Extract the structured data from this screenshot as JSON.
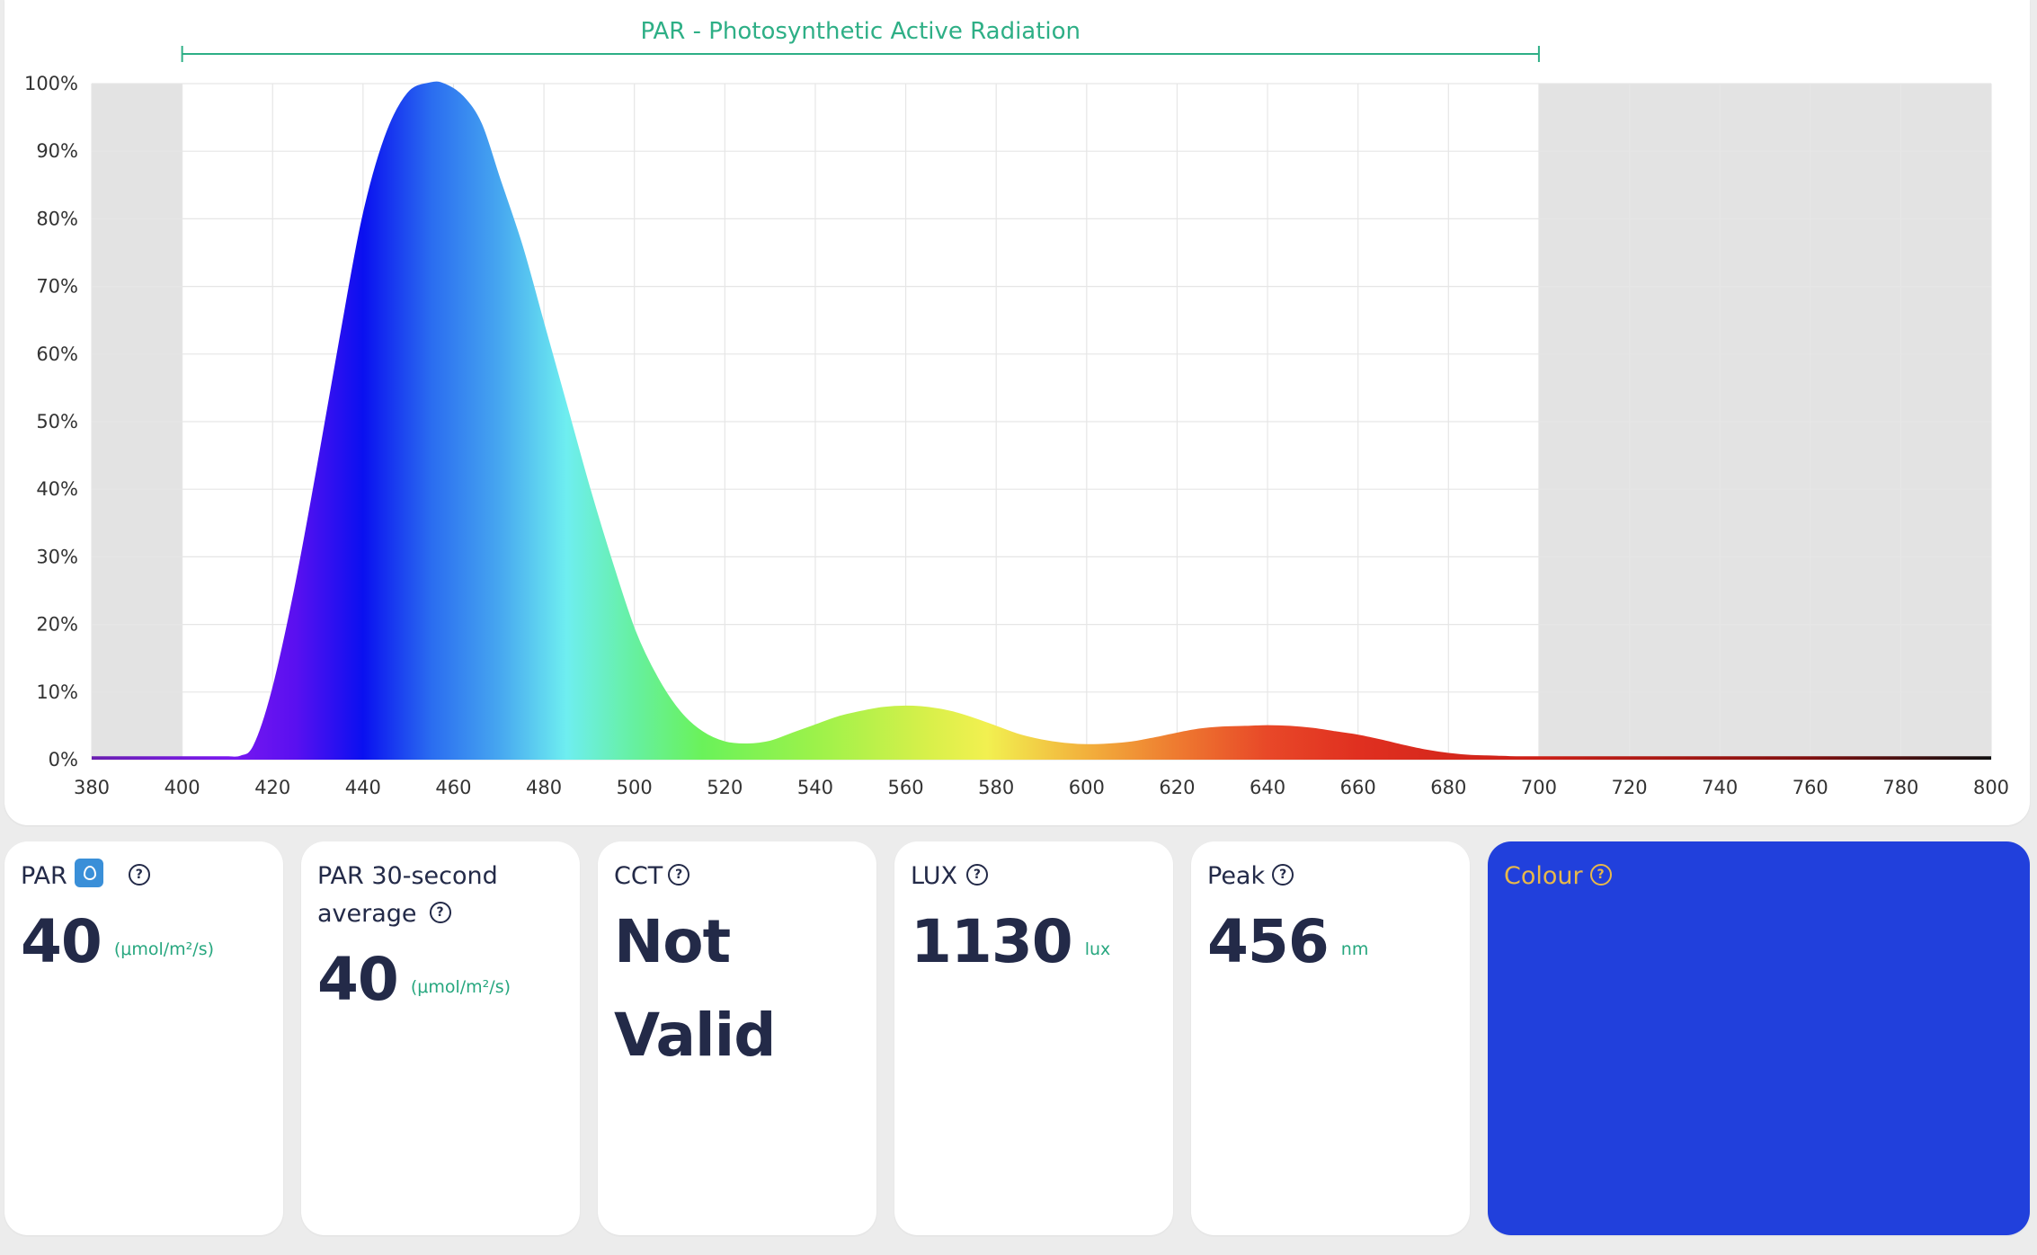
{
  "chart_data": {
    "type": "area",
    "title": "PAR - Photosynthetic Active Radiation",
    "xlabel": "",
    "ylabel": "",
    "xlim": [
      380,
      800
    ],
    "ylim": [
      0,
      100
    ],
    "x_ticks": [
      380,
      400,
      420,
      440,
      460,
      480,
      500,
      520,
      540,
      560,
      580,
      600,
      620,
      640,
      660,
      680,
      700,
      720,
      740,
      760,
      780,
      800
    ],
    "y_ticks": [
      0,
      10,
      20,
      30,
      40,
      50,
      60,
      70,
      80,
      90,
      100
    ],
    "y_tick_suffix": "%",
    "par_range": [
      400,
      700
    ],
    "grid": true,
    "x": [
      380,
      390,
      400,
      405,
      410,
      413,
      416,
      420,
      425,
      430,
      435,
      440,
      445,
      450,
      455,
      458,
      462,
      466,
      470,
      475,
      480,
      485,
      490,
      495,
      500,
      505,
      510,
      515,
      520,
      525,
      530,
      535,
      540,
      545,
      550,
      555,
      560,
      565,
      570,
      575,
      580,
      585,
      590,
      595,
      600,
      605,
      610,
      615,
      620,
      625,
      630,
      635,
      640,
      645,
      650,
      655,
      660,
      665,
      670,
      675,
      680,
      685,
      690,
      695,
      700,
      720,
      740,
      760,
      780,
      800
    ],
    "y": [
      0.3,
      0.3,
      0.3,
      0.3,
      0.3,
      0.4,
      2,
      10,
      25,
      43,
      62,
      80,
      92,
      98.5,
      100,
      99.8,
      98,
      94,
      86,
      76,
      64,
      52,
      40,
      29,
      19,
      12,
      7,
      4,
      2.5,
      2.2,
      2.6,
      3.8,
      5,
      6.2,
      7,
      7.6,
      7.8,
      7.6,
      7,
      6,
      4.8,
      3.6,
      2.8,
      2.3,
      2.1,
      2.2,
      2.5,
      3.1,
      3.8,
      4.4,
      4.7,
      4.8,
      4.9,
      4.8,
      4.5,
      4,
      3.5,
      2.8,
      2,
      1.3,
      0.8,
      0.5,
      0.4,
      0.3,
      0.3,
      0.3,
      0.3,
      0.3,
      0.3,
      0.3
    ],
    "peak_nm": 456
  },
  "cards": {
    "par": {
      "title": "PAR",
      "value": "40",
      "unit": "(μmol/m²/s)"
    },
    "par30": {
      "title_line1": "PAR 30-second",
      "title_line2": "average",
      "value": "40",
      "unit": "(μmol/m²/s)"
    },
    "cct": {
      "title": "CCT",
      "value_line1": "Not",
      "value_line2": "Valid"
    },
    "lux": {
      "title": "LUX",
      "value": "1130",
      "unit": "lux"
    },
    "peak": {
      "title": "Peak",
      "value": "456",
      "unit": "nm"
    },
    "colour": {
      "title": "Colour",
      "swatch": "#2140dc"
    }
  },
  "help_glyph": "?"
}
